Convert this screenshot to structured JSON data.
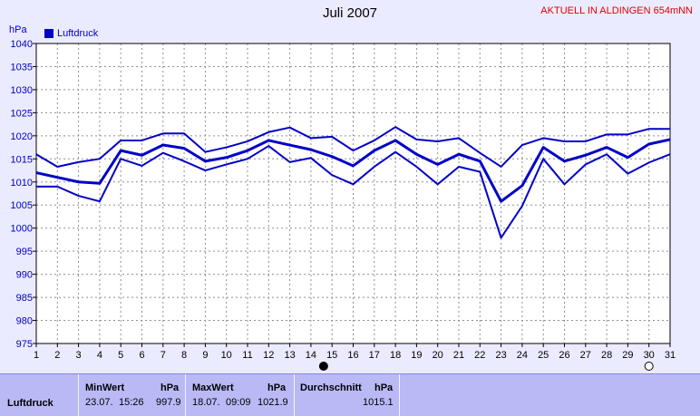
{
  "chart_data": {
    "type": "line",
    "title": "Juli 2007",
    "status_text": "AKTUELL IN ALDINGEN 654mNN",
    "ylabel": "hPa",
    "ylim": [
      975,
      1040
    ],
    "yticks": [
      975,
      980,
      985,
      990,
      995,
      1000,
      1005,
      1010,
      1015,
      1020,
      1025,
      1030,
      1035,
      1040
    ],
    "x": [
      1,
      2,
      3,
      4,
      5,
      6,
      7,
      8,
      9,
      10,
      11,
      12,
      13,
      14,
      15,
      16,
      17,
      18,
      19,
      20,
      21,
      22,
      23,
      24,
      25,
      26,
      27,
      28,
      29,
      30,
      31
    ],
    "grid": true,
    "legend": {
      "placement": "top-left",
      "entries": [
        {
          "label": "Luftdruck",
          "color": "#0000c8"
        }
      ]
    },
    "moon_markers": [
      {
        "day": 14.6,
        "phase": "new"
      },
      {
        "day": 30,
        "phase": "full"
      }
    ],
    "series": [
      {
        "name": "Luftdruck",
        "role": "max",
        "color": "#0000c8",
        "values": [
          1016,
          1013.3,
          1014.3,
          1015,
          1019,
          1019,
          1020.5,
          1020.5,
          1016.5,
          1017.5,
          1018.8,
          1020.8,
          1021.8,
          1019.5,
          1019.8,
          1016.8,
          1019,
          1021.9,
          1019.2,
          1018.8,
          1019.5,
          1016.3,
          1013.3,
          1018,
          1019.5,
          1018.8,
          1018.8,
          1020.3,
          1020.3,
          1021.5,
          1021.5
        ]
      },
      {
        "name": "Luftdruck",
        "role": "avg",
        "color": "#0000c8",
        "values": [
          1012,
          1011,
          1010,
          1009.7,
          1016.8,
          1015.8,
          1018,
          1017.3,
          1014.5,
          1015.3,
          1016.8,
          1019,
          1018,
          1017,
          1015.5,
          1013.5,
          1016.8,
          1019,
          1016,
          1013.8,
          1016,
          1014.5,
          1005.8,
          1009.2,
          1017.5,
          1014.5,
          1015.8,
          1017.5,
          1015.3,
          1018.2,
          1019.2
        ]
      },
      {
        "name": "Luftdruck",
        "role": "min",
        "color": "#0000c8",
        "values": [
          1009,
          1009,
          1007,
          1005.8,
          1015,
          1013.5,
          1016.3,
          1014.5,
          1012.5,
          1013.8,
          1015,
          1017.8,
          1014.3,
          1015.2,
          1011.5,
          1009.5,
          1013.3,
          1016.5,
          1013.3,
          1009.5,
          1013.3,
          1012.2,
          997.9,
          1004.8,
          1015,
          1009.5,
          1013.8,
          1016,
          1011.8,
          1014.2,
          1016
        ]
      }
    ]
  },
  "stats": {
    "row_label": "Luftdruck",
    "min": {
      "header": "MinWert",
      "unit": "hPa",
      "date": "23.07.",
      "time": "15:26",
      "value": "997.9"
    },
    "max": {
      "header": "MaxWert",
      "unit": "hPa",
      "date": "18.07.",
      "time": "09:09",
      "value": "1021.9"
    },
    "avg": {
      "header": "Durchschnitt",
      "unit": "hPa",
      "value": "1015.1"
    }
  }
}
